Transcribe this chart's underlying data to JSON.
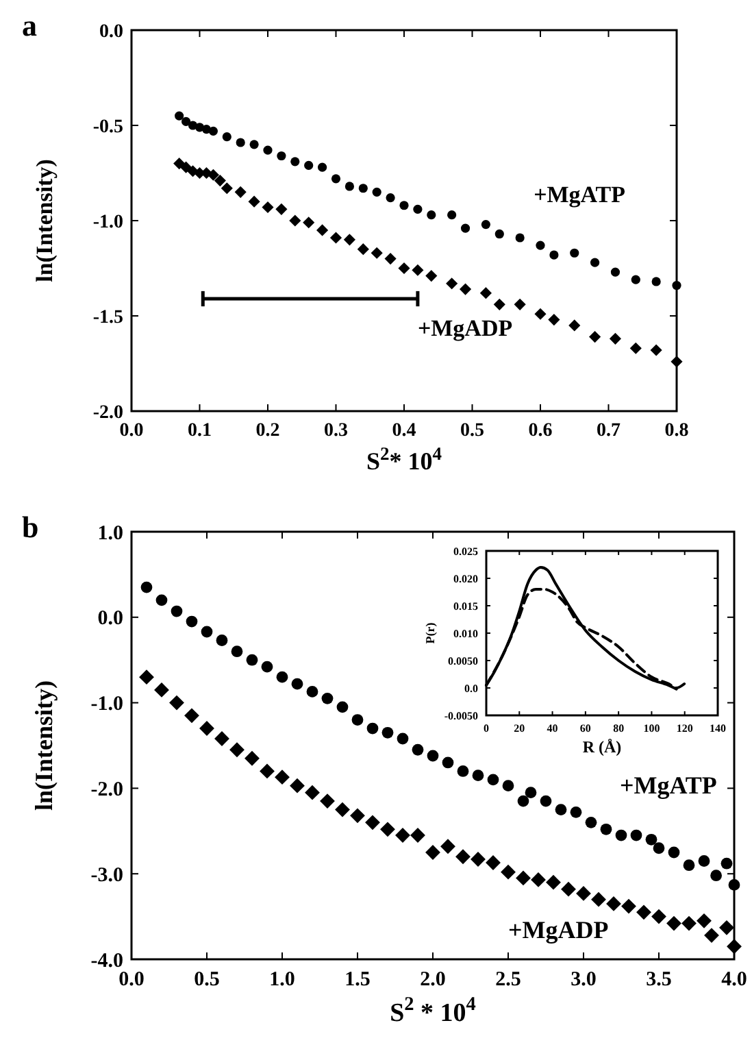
{
  "chart_data": [
    {
      "type": "scatter",
      "title": "a",
      "xlabel": "S$^{2}$* 10$^{4}$",
      "ylabel": "ln(Intensity)",
      "xlim": [
        0,
        0.8
      ],
      "ylim": [
        -2,
        0
      ],
      "xticks": [
        {
          "value": 0,
          "label": "0.0"
        },
        0.1,
        0.2,
        0.3,
        0.4,
        0.5,
        0.6,
        0.7,
        0.8
      ],
      "yticks": [
        {
          "value": -2,
          "label": "-2.0"
        },
        -1.5,
        {
          "value": -1,
          "label": "-1.0"
        },
        -0.5,
        {
          "value": 0,
          "label": "0.0"
        }
      ],
      "series": [
        {
          "name": "+MgATP",
          "color": "#000000",
          "marker": "circle",
          "x": [
            0.07,
            0.08,
            0.09,
            0.1,
            0.11,
            0.12,
            0.14,
            0.16,
            0.18,
            0.2,
            0.22,
            0.24,
            0.26,
            0.28,
            0.3,
            0.32,
            0.34,
            0.36,
            0.38,
            0.4,
            0.42,
            0.44,
            0.47,
            0.49,
            0.52,
            0.54,
            0.57,
            0.6,
            0.62,
            0.65,
            0.68,
            0.71,
            0.74,
            0.77,
            0.8
          ],
          "values": [
            -0.45,
            -0.48,
            -0.5,
            -0.51,
            -0.52,
            -0.53,
            -0.56,
            -0.59,
            -0.6,
            -0.63,
            -0.66,
            -0.69,
            -0.71,
            -0.72,
            -0.78,
            -0.82,
            -0.83,
            -0.85,
            -0.88,
            -0.92,
            -0.94,
            -0.97,
            -0.97,
            -1.04,
            -1.02,
            -1.07,
            -1.09,
            -1.13,
            -1.18,
            -1.17,
            -1.22,
            -1.27,
            -1.31,
            -1.32,
            -1.34
          ]
        },
        {
          "name": "+MgADP",
          "color": "#000000",
          "marker": "diamond",
          "x": [
            0.07,
            0.08,
            0.09,
            0.1,
            0.11,
            0.12,
            0.13,
            0.14,
            0.16,
            0.18,
            0.2,
            0.22,
            0.24,
            0.26,
            0.28,
            0.3,
            0.32,
            0.34,
            0.36,
            0.38,
            0.4,
            0.42,
            0.44,
            0.47,
            0.49,
            0.52,
            0.54,
            0.57,
            0.6,
            0.62,
            0.65,
            0.68,
            0.71,
            0.74,
            0.77,
            0.8
          ],
          "values": [
            -0.7,
            -0.72,
            -0.74,
            -0.75,
            -0.75,
            -0.76,
            -0.79,
            -0.83,
            -0.85,
            -0.9,
            -0.93,
            -0.94,
            -1.0,
            -1.01,
            -1.05,
            -1.09,
            -1.1,
            -1.15,
            -1.17,
            -1.2,
            -1.25,
            -1.26,
            -1.29,
            -1.33,
            -1.36,
            -1.38,
            -1.44,
            -1.44,
            -1.49,
            -1.52,
            -1.55,
            -1.61,
            -1.62,
            -1.67,
            -1.68,
            -1.74
          ]
        }
      ]
    },
    {
      "type": "scatter",
      "title": "b",
      "xlabel": "S$^{2}$ * 10$^{4}$",
      "ylabel": "ln(Intensity)",
      "xlim": [
        0,
        4
      ],
      "ylim": [
        -4,
        1
      ],
      "xticks": [
        {
          "value": 0,
          "label": "0.0"
        },
        0.5,
        {
          "value": 1,
          "label": "1.0"
        },
        1.5,
        {
          "value": 2,
          "label": "2.0"
        },
        2.5,
        {
          "value": 3,
          "label": "3.0"
        },
        3.5,
        {
          "value": 4,
          "label": "4.0"
        }
      ],
      "yticks": [
        {
          "value": -4,
          "label": "-4.0"
        },
        {
          "value": -3,
          "label": "-3.0"
        },
        {
          "value": -2,
          "label": "-2.0"
        },
        {
          "value": -1,
          "label": "-1.0"
        },
        {
          "value": 0,
          "label": "0.0"
        },
        {
          "value": 1,
          "label": "1.0"
        }
      ],
      "series": [
        {
          "name": "+MgATP",
          "color": "#000000",
          "marker": "circle",
          "x": [
            0.1,
            0.2,
            0.3,
            0.4,
            0.5,
            0.6,
            0.7,
            0.8,
            0.9,
            1.0,
            1.1,
            1.2,
            1.3,
            1.4,
            1.5,
            1.6,
            1.7,
            1.8,
            1.9,
            2.0,
            2.1,
            2.2,
            2.3,
            2.4,
            2.5,
            2.6,
            2.65,
            2.75,
            2.85,
            2.95,
            3.05,
            3.15,
            3.25,
            3.35,
            3.45,
            3.5,
            3.6,
            3.7,
            3.8,
            3.88,
            3.95,
            4.0
          ],
          "values": [
            0.35,
            0.2,
            0.07,
            -0.05,
            -0.17,
            -0.27,
            -0.4,
            -0.5,
            -0.58,
            -0.7,
            -0.78,
            -0.87,
            -0.95,
            -1.05,
            -1.2,
            -1.3,
            -1.35,
            -1.42,
            -1.55,
            -1.62,
            -1.7,
            -1.8,
            -1.85,
            -1.9,
            -1.97,
            -2.15,
            -2.05,
            -2.15,
            -2.25,
            -2.28,
            -2.4,
            -2.48,
            -2.55,
            -2.55,
            -2.6,
            -2.7,
            -2.75,
            -2.9,
            -2.85,
            -3.02,
            -2.88,
            -3.13
          ]
        },
        {
          "name": "+MgADP",
          "color": "#000000",
          "marker": "diamond",
          "x": [
            0.1,
            0.2,
            0.3,
            0.4,
            0.5,
            0.6,
            0.7,
            0.8,
            0.9,
            1.0,
            1.1,
            1.2,
            1.3,
            1.4,
            1.5,
            1.6,
            1.7,
            1.8,
            1.9,
            2.0,
            2.1,
            2.2,
            2.3,
            2.4,
            2.5,
            2.6,
            2.7,
            2.8,
            2.9,
            3.0,
            3.1,
            3.2,
            3.3,
            3.4,
            3.5,
            3.6,
            3.7,
            3.8,
            3.85,
            3.95,
            4.0
          ],
          "values": [
            -0.7,
            -0.85,
            -1.0,
            -1.15,
            -1.3,
            -1.42,
            -1.55,
            -1.65,
            -1.8,
            -1.87,
            -1.97,
            -2.05,
            -2.15,
            -2.25,
            -2.32,
            -2.4,
            -2.48,
            -2.55,
            -2.55,
            -2.75,
            -2.68,
            -2.8,
            -2.83,
            -2.87,
            -2.98,
            -3.05,
            -3.07,
            -3.1,
            -3.18,
            -3.23,
            -3.3,
            -3.35,
            -3.38,
            -3.45,
            -3.5,
            -3.58,
            -3.58,
            -3.55,
            -3.72,
            -3.63,
            -3.85
          ]
        }
      ]
    },
    {
      "type": "line",
      "xlabel": "R (Å)",
      "ylabel": "P(r)",
      "xlim": [
        0,
        140
      ],
      "ylim": [
        -0.005,
        0.025
      ],
      "xticks": [
        0,
        20,
        40,
        60,
        80,
        100,
        120,
        140
      ],
      "yticks": [
        {
          "value": -0.005,
          "label": "-0.0050"
        },
        {
          "value": 0,
          "label": "0.0"
        },
        {
          "value": 0.005,
          "label": "0.0050"
        },
        {
          "value": 0.01,
          "label": "0.010"
        },
        {
          "value": 0.015,
          "label": "0.015"
        },
        {
          "value": 0.02,
          "label": "0.020"
        },
        {
          "value": 0.025,
          "label": "0.025"
        }
      ],
      "series": [
        {
          "color": "#000000",
          "line_style": "solid",
          "x": [
            0,
            5,
            10,
            15,
            20,
            25,
            30,
            33,
            37,
            42,
            50,
            60,
            70,
            80,
            90,
            100,
            110,
            115
          ],
          "values": [
            0.0005,
            0.003,
            0.006,
            0.0095,
            0.014,
            0.019,
            0.0215,
            0.022,
            0.0215,
            0.019,
            0.015,
            0.0105,
            0.0075,
            0.005,
            0.003,
            0.0015,
            0.0005,
            -0.0002
          ]
        },
        {
          "color": "#000000",
          "line_style": "dashed",
          "x": [
            0,
            10,
            20,
            25,
            30,
            35,
            40,
            50,
            55,
            60,
            70,
            80,
            90,
            100,
            110,
            115,
            120
          ],
          "values": [
            0.0005,
            0.006,
            0.013,
            0.017,
            0.018,
            0.018,
            0.0175,
            0.0145,
            0.012,
            0.011,
            0.0095,
            0.0075,
            0.0045,
            0.002,
            0.0008,
            0.0,
            0.0008
          ]
        }
      ]
    }
  ]
}
